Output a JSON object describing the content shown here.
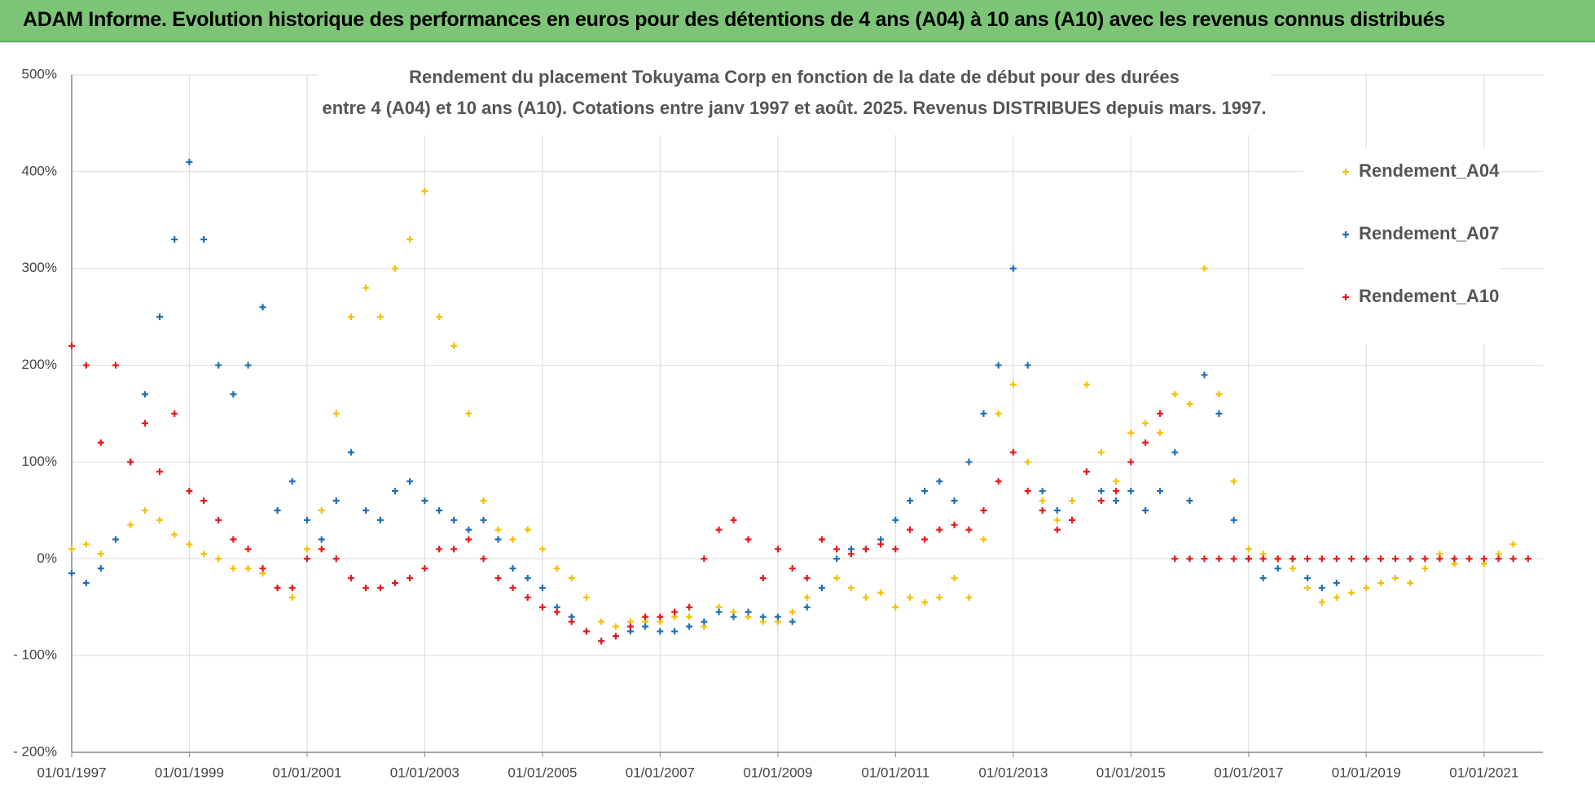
{
  "banner": "ADAM Informe. Evolution historique des performances en euros pour des détentions de 4 ans (A04) à 10 ans (A10) avec les revenus connus distribués",
  "chart_data": {
    "type": "scatter",
    "title_lines": [
      "Rendement du placement Tokuyama Corp en fonction de la date de début pour des durées",
      "entre 4 (A04) et 10 ans (A10). Cotations entre janv 1997 et août. 2025. Revenus DISTRIBUES depuis mars. 1997."
    ],
    "x": [
      "01/01/1997",
      "01/04/1997",
      "01/07/1997",
      "01/10/1997",
      "01/01/1998",
      "01/04/1998",
      "01/07/1998",
      "01/10/1998",
      "01/01/1999",
      "01/04/1999",
      "01/07/1999",
      "01/10/1999",
      "01/01/2000",
      "01/04/2000",
      "01/07/2000",
      "01/10/2000",
      "01/01/2001",
      "01/04/2001",
      "01/07/2001",
      "01/10/2001",
      "01/01/2002",
      "01/04/2002",
      "01/07/2002",
      "01/10/2002",
      "01/01/2003",
      "01/04/2003",
      "01/07/2003",
      "01/10/2003",
      "01/01/2004",
      "01/04/2004",
      "01/07/2004",
      "01/10/2004",
      "01/01/2005",
      "01/04/2005",
      "01/07/2005",
      "01/10/2005",
      "01/01/2006",
      "01/04/2006",
      "01/07/2006",
      "01/10/2006",
      "01/01/2007",
      "01/04/2007",
      "01/07/2007",
      "01/10/2007",
      "01/01/2008",
      "01/04/2008",
      "01/07/2008",
      "01/10/2008",
      "01/01/2009",
      "01/04/2009",
      "01/07/2009",
      "01/10/2009",
      "01/01/2010",
      "01/04/2010",
      "01/07/2010",
      "01/10/2010",
      "01/01/2011",
      "01/04/2011",
      "01/07/2011",
      "01/10/2011",
      "01/01/2012",
      "01/04/2012",
      "01/07/2012",
      "01/10/2012",
      "01/01/2013",
      "01/04/2013",
      "01/07/2013",
      "01/10/2013",
      "01/01/2014",
      "01/04/2014",
      "01/07/2014",
      "01/10/2014",
      "01/01/2015",
      "01/04/2015",
      "01/07/2015",
      "01/10/2015",
      "01/01/2016",
      "01/04/2016",
      "01/07/2016",
      "01/10/2016",
      "01/01/2017",
      "01/04/2017",
      "01/07/2017",
      "01/10/2017",
      "01/01/2018",
      "01/04/2018",
      "01/07/2018",
      "01/10/2018",
      "01/01/2019",
      "01/04/2019",
      "01/07/2019",
      "01/10/2019",
      "01/01/2020",
      "01/04/2020",
      "01/07/2020",
      "01/10/2020",
      "01/01/2021",
      "01/04/2021",
      "01/07/2021",
      "01/10/2021"
    ],
    "series": [
      {
        "name": "Rendement_A04",
        "color": "#f5c000",
        "values": [
          10,
          15,
          5,
          20,
          35,
          50,
          40,
          25,
          15,
          5,
          0,
          -10,
          -10,
          -15,
          -30,
          -40,
          10,
          50,
          150,
          250,
          280,
          250,
          300,
          330,
          380,
          250,
          220,
          150,
          60,
          30,
          20,
          30,
          10,
          -10,
          -20,
          -40,
          -65,
          -70,
          -65,
          -65,
          -65,
          -60,
          -60,
          -70,
          -50,
          -55,
          -60,
          -65,
          -65,
          -55,
          -40,
          -30,
          -20,
          -30,
          -40,
          -35,
          -50,
          -40,
          -45,
          -40,
          -20,
          -40,
          20,
          150,
          180,
          100,
          60,
          40,
          60,
          180,
          110,
          80,
          130,
          140,
          130,
          170,
          160,
          300,
          170,
          80,
          10,
          5,
          0,
          -10,
          -30,
          -45,
          -40,
          -35,
          -30,
          -25,
          -20,
          -25,
          -10,
          5,
          -5,
          0,
          -5,
          5,
          15,
          null
        ]
      },
      {
        "name": "Rendement_A07",
        "color": "#1f6fb5",
        "values": [
          -15,
          -25,
          -10,
          20,
          100,
          170,
          250,
          330,
          410,
          330,
          200,
          170,
          200,
          260,
          50,
          80,
          40,
          20,
          60,
          110,
          50,
          40,
          70,
          80,
          60,
          50,
          40,
          30,
          40,
          20,
          -10,
          -20,
          -30,
          -50,
          -60,
          -75,
          -85,
          -80,
          -75,
          -70,
          -75,
          -75,
          -70,
          -65,
          -55,
          -60,
          -55,
          -60,
          -60,
          -65,
          -50,
          -30,
          0,
          10,
          10,
          20,
          40,
          60,
          70,
          80,
          60,
          100,
          150,
          200,
          300,
          200,
          70,
          50,
          40,
          90,
          70,
          60,
          70,
          50,
          70,
          110,
          60,
          190,
          150,
          40,
          0,
          -20,
          -10,
          0,
          -20,
          -30,
          -25,
          null,
          null,
          null,
          null,
          null,
          null,
          null,
          null,
          null,
          null,
          null,
          null,
          null
        ]
      },
      {
        "name": "Rendement_A10",
        "color": "#e8161b",
        "values": [
          220,
          200,
          120,
          200,
          100,
          140,
          90,
          150,
          70,
          60,
          40,
          20,
          10,
          -10,
          -30,
          -30,
          0,
          10,
          0,
          -20,
          -30,
          -30,
          -25,
          -20,
          -10,
          10,
          10,
          20,
          0,
          -20,
          -30,
          -40,
          -50,
          -55,
          -65,
          -75,
          -85,
          -80,
          -70,
          -60,
          -60,
          -55,
          -50,
          0,
          30,
          40,
          20,
          -20,
          10,
          -10,
          -20,
          20,
          10,
          5,
          10,
          15,
          10,
          30,
          20,
          30,
          35,
          30,
          50,
          80,
          110,
          70,
          50,
          30,
          40,
          90,
          60,
          70,
          100,
          120,
          150,
          0,
          0,
          0,
          0,
          0,
          0,
          0,
          0,
          0,
          0,
          0,
          0,
          0,
          0,
          0,
          0,
          0,
          0,
          0,
          0,
          0,
          0,
          0,
          0,
          0
        ]
      }
    ],
    "xlim": [
      "01/01/1997",
      "01/01/2022"
    ],
    "xticks": [
      "01/01/1997",
      "01/01/1999",
      "01/01/2001",
      "01/01/2003",
      "01/01/2005",
      "01/01/2007",
      "01/01/2009",
      "01/01/2011",
      "01/01/2013",
      "01/01/2015",
      "01/01/2017",
      "01/01/2019",
      "01/01/2021"
    ],
    "ylim": [
      -200,
      500
    ],
    "yticks": [
      {
        "value": -200,
        "label": "- 200%"
      },
      {
        "value": -100,
        "label": "- 100%"
      },
      {
        "value": 0,
        "label": "0%"
      },
      {
        "value": 100,
        "label": "100%"
      },
      {
        "value": 200,
        "label": "200%"
      },
      {
        "value": 300,
        "label": "300%"
      },
      {
        "value": 400,
        "label": "400%"
      },
      {
        "value": 500,
        "label": "500%"
      }
    ],
    "grid": true,
    "legend": "right"
  }
}
